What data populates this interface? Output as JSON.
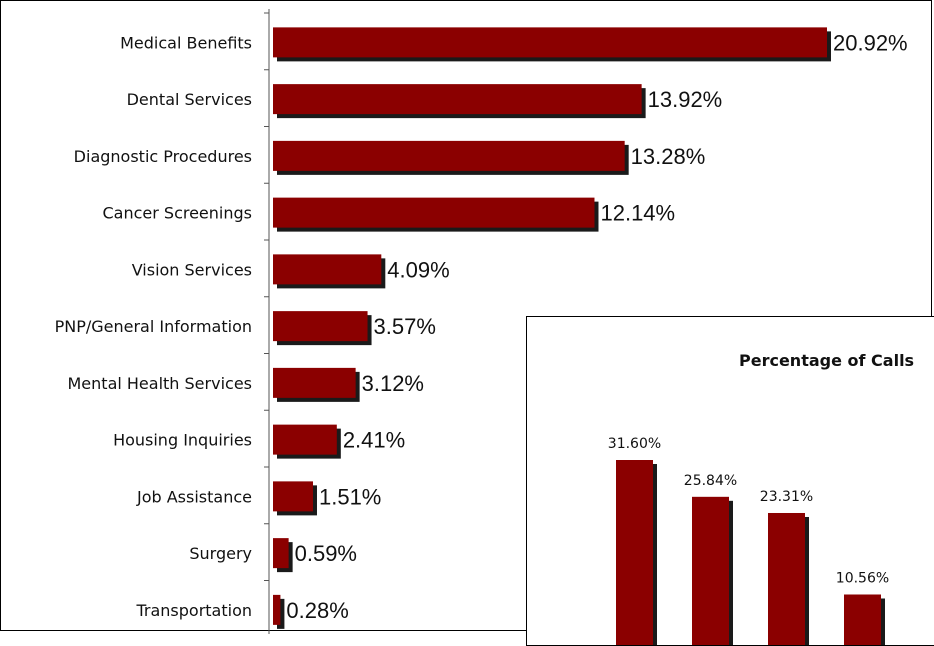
{
  "chart_data": [
    {
      "type": "bar",
      "orientation": "horizontal",
      "categories": [
        "Medical Benefits",
        "Dental Services",
        "Diagnostic Procedures",
        "Cancer Screenings",
        "Vision Services",
        "PNP/General Information",
        "Mental Health Services",
        "Housing Inquiries",
        "Job Assistance",
        "Surgery",
        "Transportation"
      ],
      "values": [
        20.92,
        13.92,
        13.28,
        12.14,
        4.09,
        3.57,
        3.12,
        2.41,
        1.51,
        0.59,
        0.28
      ],
      "value_labels": [
        "20.92%",
        "13.92%",
        "13.28%",
        "12.14%",
        "4.09%",
        "3.57%",
        "3.12%",
        "2.41%",
        "1.51%",
        "0.59%",
        "0.28%"
      ],
      "bar_color": "#8b0000",
      "shadow_color": "#1a1a1a",
      "grid": false,
      "legend": false
    },
    {
      "type": "bar",
      "title": "Percentage of Calls",
      "values": [
        31.6,
        25.84,
        23.31,
        10.56
      ],
      "value_labels": [
        "31.60%",
        "25.84%",
        "23.31%",
        "10.56%"
      ],
      "bar_color": "#8b0000",
      "shadow_color": "#1a1a1a",
      "grid": false,
      "legend": false
    }
  ]
}
